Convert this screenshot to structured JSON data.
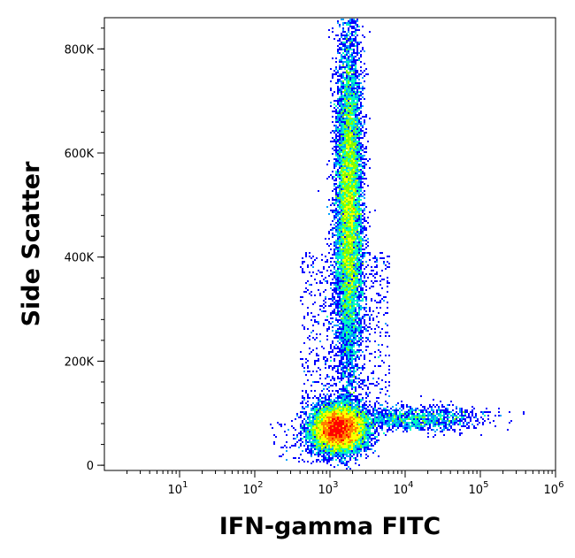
{
  "chart_data": {
    "type": "density-scatter",
    "xlabel": "IFN-gamma FITC",
    "ylabel": "Side Scatter",
    "x_scale": "log",
    "xlim": [
      1,
      1000000
    ],
    "ylim": [
      -10000,
      860000
    ],
    "x_ticks": [
      {
        "value": 10,
        "base": "10",
        "exp": "1"
      },
      {
        "value": 100,
        "base": "10",
        "exp": "2"
      },
      {
        "value": 1000,
        "base": "10",
        "exp": "3"
      },
      {
        "value": 10000,
        "base": "10",
        "exp": "4"
      },
      {
        "value": 100000,
        "base": "10",
        "exp": "5"
      },
      {
        "value": 1000000,
        "base": "10",
        "exp": "6"
      }
    ],
    "y_ticks": [
      {
        "value": 0,
        "label": "0"
      },
      {
        "value": 200000,
        "label": "200K"
      },
      {
        "value": 400000,
        "label": "400K"
      },
      {
        "value": 600000,
        "label": "600K"
      },
      {
        "value": 800000,
        "label": "800K"
      }
    ],
    "populations": [
      {
        "name": "",
        "x_center": 1300,
        "y_center": 70000,
        "x_spread_decades": 0.18,
        "y_spread": 22000,
        "density": "high"
      },
      {
        "name": "",
        "x_center": 1800,
        "y_center": 500000,
        "x_spread_decades": 0.09,
        "y_spread": 170000,
        "density": "medium"
      },
      {
        "name": "",
        "x_center": 15000,
        "y_center": 90000,
        "x_spread_decades": 0.45,
        "y_spread": 12000,
        "density": "low"
      }
    ],
    "colormap": [
      "#0000ff",
      "#00a0ff",
      "#00ffc0",
      "#80ff00",
      "#ffff00",
      "#ff8000",
      "#ff0000"
    ],
    "grid": false
  }
}
